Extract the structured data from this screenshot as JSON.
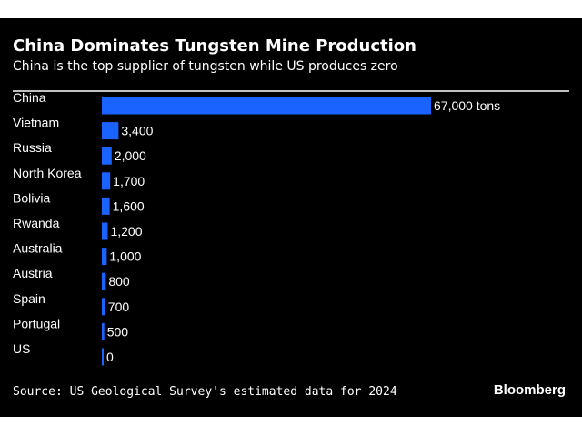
{
  "header": {
    "title": "China Dominates Tungsten Mine Production",
    "subtitle": "China is the top supplier of tungsten while US produces zero"
  },
  "footer": {
    "source": "Source: US Geological Survey's estimated data for 2024",
    "brand": "Bloomberg"
  },
  "colors": {
    "bar": "#1a63ff",
    "background": "#000000",
    "text": "#ffffff"
  },
  "chart_data": {
    "type": "bar",
    "orientation": "horizontal",
    "title": "China Dominates Tungsten Mine Production",
    "subtitle": "China is the top supplier of tungsten while US produces zero",
    "categories": [
      "China",
      "Vietnam",
      "Russia",
      "North Korea",
      "Bolivia",
      "Rwanda",
      "Australia",
      "Austria",
      "Spain",
      "Portugal",
      "US"
    ],
    "values": [
      67000,
      3400,
      2000,
      1700,
      1600,
      1200,
      1000,
      800,
      700,
      500,
      0
    ],
    "value_labels": [
      "67,000 tons",
      "3,400",
      "2,000",
      "1,700",
      "1,600",
      "1,200",
      "1,000",
      "800",
      "700",
      "500",
      "0"
    ],
    "xlim": [
      0,
      67000
    ],
    "grid": false,
    "legend": "none"
  }
}
